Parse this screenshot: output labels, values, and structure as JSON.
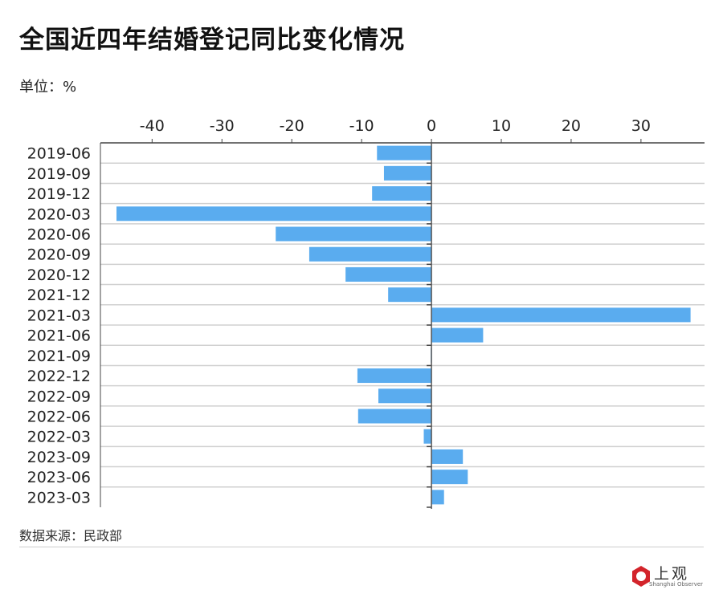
{
  "title": "全国近四年结婚登记同比变化情况",
  "unit": "单位：%",
  "source": "数据来源：民政部",
  "logo": {
    "name": "上观",
    "sub": "Shanghai Observer"
  },
  "chart_data": {
    "type": "bar",
    "orientation": "horizontal",
    "title": "全国近四年结婚登记同比变化情况",
    "xlabel": "",
    "ylabel": "",
    "unit": "%",
    "xlim": [
      -47.4,
      39.1
    ],
    "xticks": [
      -40,
      -30,
      -20,
      -10,
      0,
      10,
      20,
      30
    ],
    "categories": [
      "2019-06",
      "2019-09",
      "2019-12",
      "2020-03",
      "2020-06",
      "2020-09",
      "2020-12",
      "2021-12",
      "2021-03",
      "2021-06",
      "2021-09",
      "2022-12",
      "2022-09",
      "2022-06",
      "2022-03",
      "2023-09",
      "2023-06",
      "2023-03"
    ],
    "values": [
      -7.8,
      -6.8,
      -8.5,
      -45.1,
      -22.3,
      -17.5,
      -12.3,
      -6.2,
      37.1,
      7.4,
      -0.1,
      -10.6,
      -7.6,
      -10.5,
      -1.1,
      4.5,
      5.2,
      1.8
    ],
    "bar_color": "#5aacef",
    "grid": true,
    "legend": "none"
  }
}
